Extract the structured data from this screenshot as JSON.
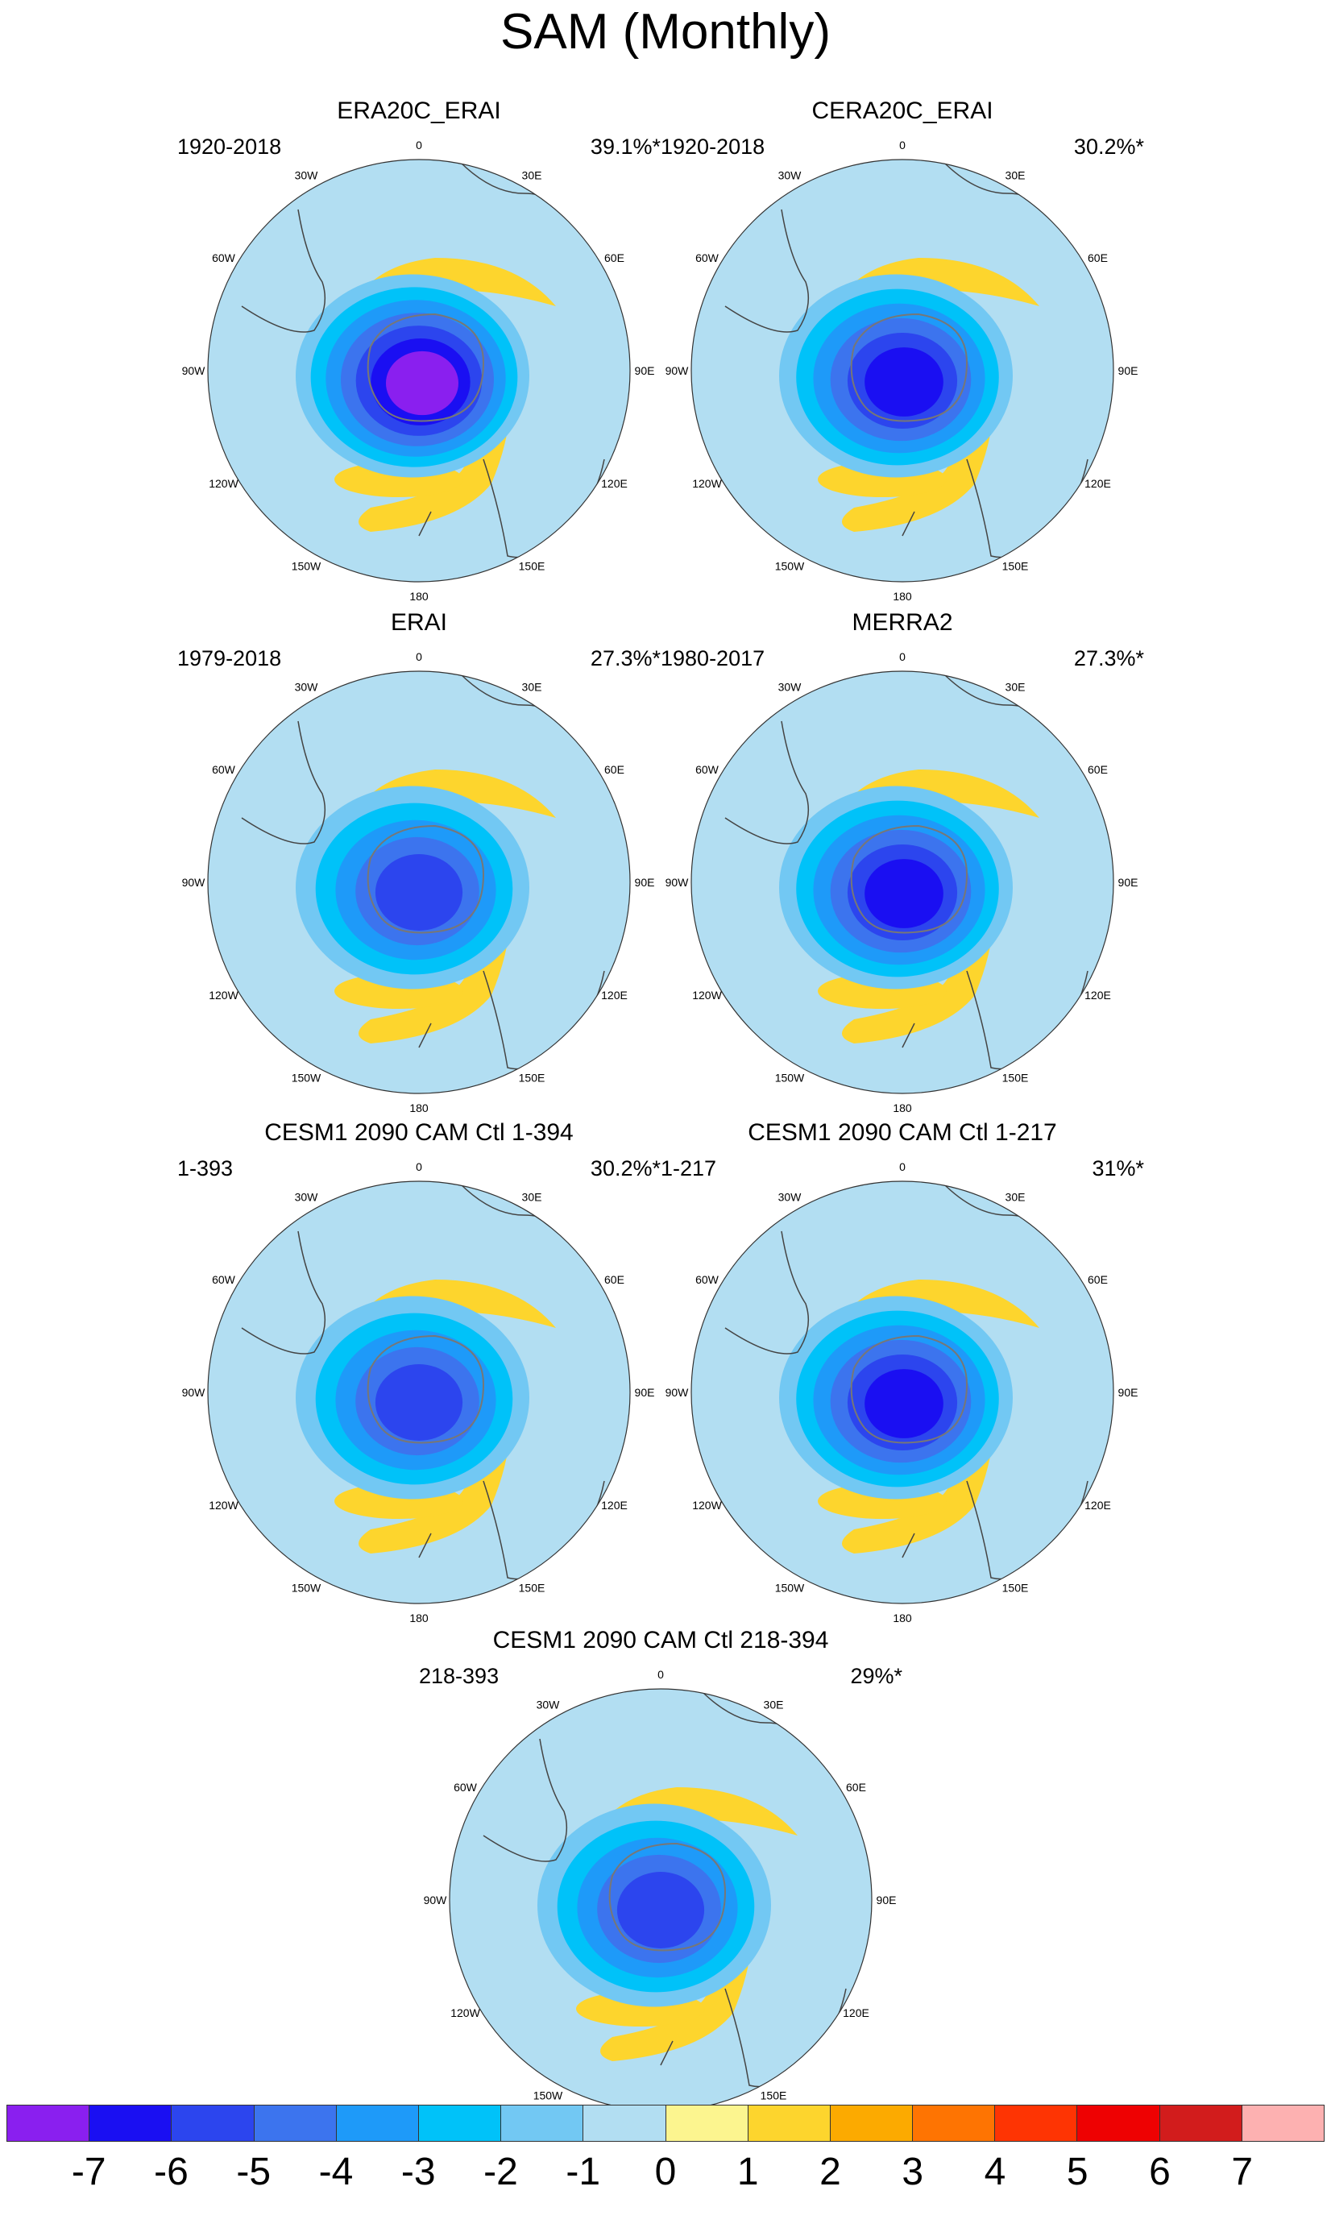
{
  "figure": {
    "title": "SAM (Monthly)"
  },
  "longitude_labels": [
    "0",
    "30E",
    "60E",
    "90E",
    "120E",
    "150E",
    "180",
    "150W",
    "120W",
    "90W",
    "60W",
    "30W"
  ],
  "chart_data": {
    "type": "polar-stereographic contour maps",
    "hemisphere": "Southern",
    "variable": "SAM (Monthly)",
    "panels": [
      {
        "title": "ERA20C_ERAI",
        "period": "1920-2018",
        "variance_explained": "39.1%*",
        "center_min": -7
      },
      {
        "title": "CERA20C_ERAI",
        "period": "1920-2018",
        "variance_explained": "30.2%*",
        "center_min": -6
      },
      {
        "title": "ERAI",
        "period": "1979-2018",
        "variance_explained": "27.3%*",
        "center_min": -5
      },
      {
        "title": "MERRA2",
        "period": "1980-2017",
        "variance_explained": "27.3%*",
        "center_min": -6
      },
      {
        "title": "CESM1 2090 CAM Ctl 1-394",
        "period": "1-393",
        "variance_explained": "30.2%*",
        "center_min": -5
      },
      {
        "title": "CESM1 2090 CAM Ctl 1-217",
        "period": "1-217",
        "variance_explained": "31%*",
        "center_min": -6
      },
      {
        "title": "CESM1 2090 CAM Ctl 218-394",
        "period": "218-393",
        "variance_explained": "29%*",
        "center_min": -5
      }
    ],
    "colorbar": {
      "levels": [
        -7,
        -6,
        -5,
        -4,
        -3,
        -2,
        -1,
        0,
        1,
        2,
        3,
        4,
        5,
        6,
        7
      ],
      "labels": [
        "-7",
        "-6",
        "-5",
        "-4",
        "-3",
        "-2",
        "-1",
        "0",
        "1",
        "2",
        "3",
        "4",
        "5",
        "6",
        "7"
      ],
      "colors": [
        "#8a1fef",
        "#1a0ff2",
        "#2c45ee",
        "#3c74ee",
        "#1e9af9",
        "#00c2f9",
        "#72c8f3",
        "#b2def2",
        "#fcf58f",
        "#fdd52d",
        "#fcaa00",
        "#fe7402",
        "#fe3403",
        "#ee0102",
        "#d21c1c",
        "#fdb1b1"
      ]
    }
  }
}
